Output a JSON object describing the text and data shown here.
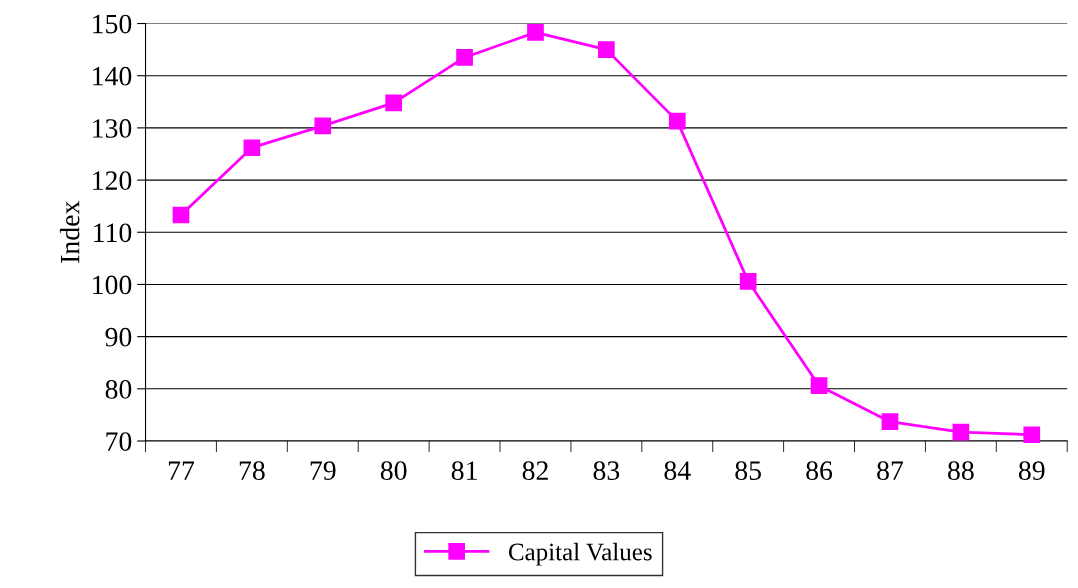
{
  "chart_data": {
    "type": "line",
    "ylabel": "Index",
    "categories": [
      "77",
      "78",
      "79",
      "80",
      "81",
      "82",
      "83",
      "84",
      "85",
      "86",
      "87",
      "88",
      "89"
    ],
    "series": [
      {
        "name": "Capital Values",
        "color": "#ff00ff",
        "values": [
          113.3,
          126.2,
          130.4,
          134.8,
          143.5,
          148.3,
          145.0,
          131.3,
          100.6,
          80.6,
          73.7,
          71.7,
          71.2
        ]
      }
    ],
    "ylim": [
      70,
      150
    ],
    "yticks": [
      70,
      80,
      90,
      100,
      110,
      120,
      130,
      140,
      150
    ],
    "grid": "y",
    "legend": "bottom",
    "marker": "square",
    "line_style": "solid"
  }
}
